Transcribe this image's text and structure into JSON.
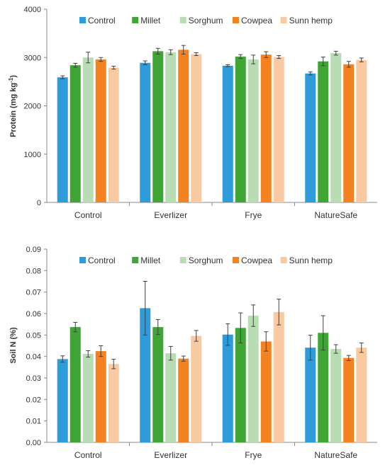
{
  "chart_data": [
    {
      "type": "bar",
      "ylabel": "Protein (mg kg",
      "ylabel_sup": "-1",
      "ylabel_close": ")",
      "categories": [
        "Control",
        "Everlizer",
        "Frye",
        "NatureSafe"
      ],
      "ylim": [
        0,
        4000
      ],
      "yticks": [
        "0",
        "1000",
        "2000",
        "3000",
        "4000"
      ],
      "ytick_values": [
        0,
        1000,
        2000,
        3000,
        4000
      ],
      "grid": false,
      "legend_position": "top",
      "series": [
        {
          "name": "Control",
          "color": "#2E9BDA",
          "values": [
            2590,
            2890,
            2830,
            2670
          ],
          "errors": [
            30,
            40,
            20,
            30
          ]
        },
        {
          "name": "Millet",
          "color": "#3FA535",
          "values": [
            2840,
            3130,
            3020,
            2920
          ],
          "errors": [
            40,
            60,
            40,
            90
          ]
        },
        {
          "name": "Sorghum",
          "color": "#B9DDB3",
          "values": [
            3000,
            3110,
            2960,
            3090
          ],
          "errors": [
            110,
            50,
            90,
            40
          ]
        },
        {
          "name": "Cowpea",
          "color": "#F58220",
          "values": [
            2960,
            3160,
            3060,
            2860
          ],
          "errors": [
            40,
            90,
            60,
            60
          ]
        },
        {
          "name": "Sunn hemp",
          "color": "#F9C9A2",
          "values": [
            2790,
            3070,
            3010,
            2950
          ],
          "errors": [
            30,
            30,
            30,
            40
          ]
        }
      ]
    },
    {
      "type": "bar",
      "ylabel": "Soil  N (%)",
      "categories": [
        "Control",
        "Everlizer",
        "Frye",
        "NatureSafe"
      ],
      "ylim": [
        0,
        0.09
      ],
      "yticks": [
        "0.00",
        "0.01",
        "0.02",
        "0.03",
        "0.04",
        "0.05",
        "0.06",
        "0.07",
        "0.08",
        "0.09"
      ],
      "ytick_values": [
        0,
        0.01,
        0.02,
        0.03,
        0.04,
        0.05,
        0.06,
        0.07,
        0.08,
        0.09
      ],
      "grid": false,
      "legend_position": "top",
      "series": [
        {
          "name": "Control",
          "color": "#2E9BDA",
          "values": [
            0.0388,
            0.0625,
            0.0502,
            0.0441
          ],
          "errors": [
            0.0015,
            0.0125,
            0.005,
            0.0058
          ]
        },
        {
          "name": "Millet",
          "color": "#3FA535",
          "values": [
            0.0537,
            0.0537,
            0.0533,
            0.051
          ],
          "errors": [
            0.0022,
            0.0035,
            0.007,
            0.008
          ]
        },
        {
          "name": "Sorghum",
          "color": "#B9DDB3",
          "values": [
            0.0412,
            0.0415,
            0.059,
            0.0435
          ],
          "errors": [
            0.0015,
            0.0032,
            0.005,
            0.002
          ]
        },
        {
          "name": "Cowpea",
          "color": "#F58220",
          "values": [
            0.0425,
            0.039,
            0.047,
            0.0393
          ],
          "errors": [
            0.0025,
            0.0012,
            0.0045,
            0.0012
          ]
        },
        {
          "name": "Sunn hemp",
          "color": "#F9C9A2",
          "values": [
            0.0365,
            0.0496,
            0.0607,
            0.0441
          ],
          "errors": [
            0.0022,
            0.0025,
            0.006,
            0.0022
          ]
        }
      ]
    }
  ]
}
